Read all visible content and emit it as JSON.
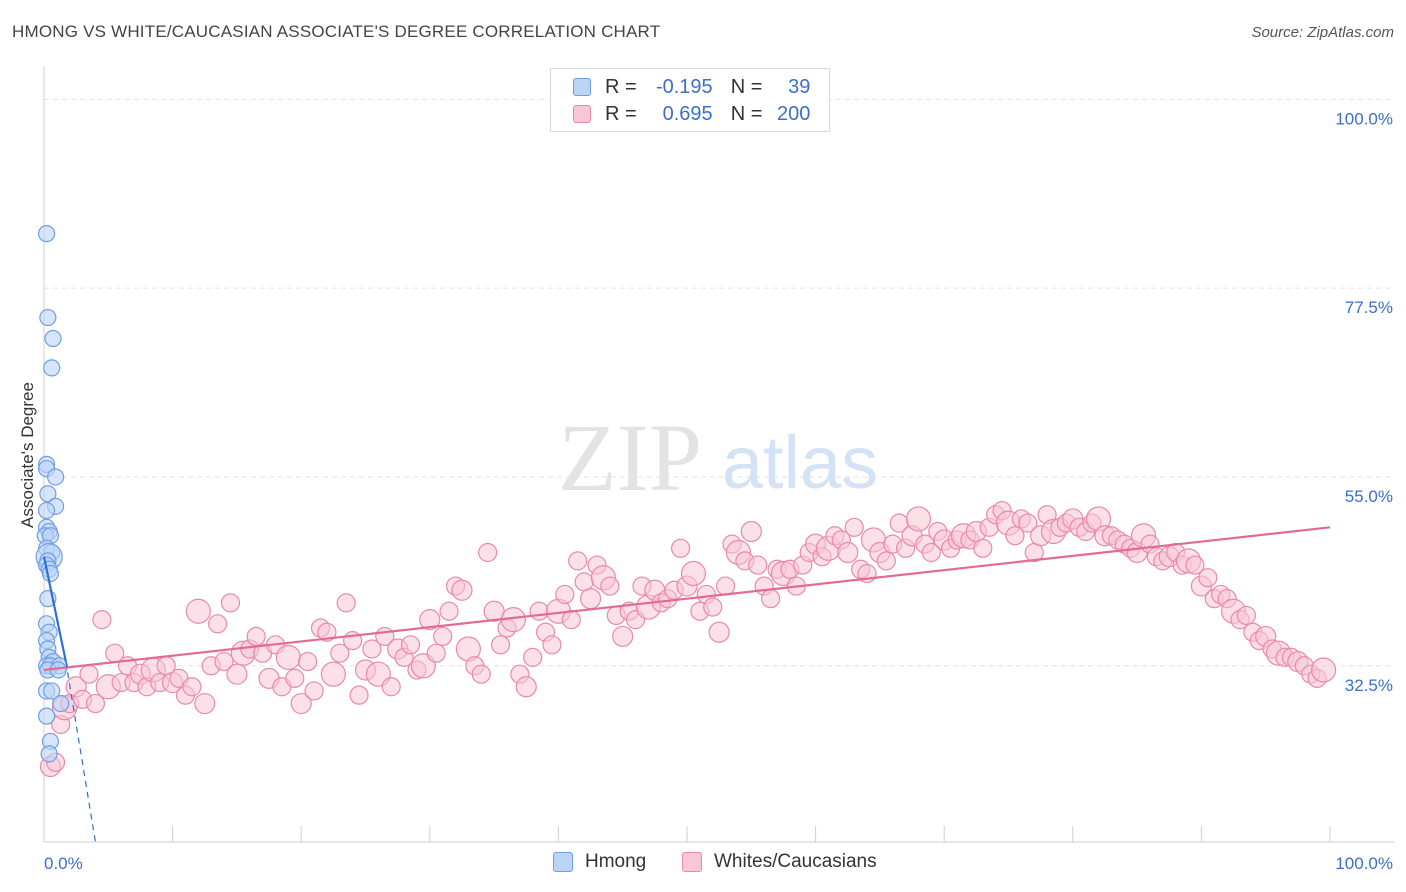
{
  "header": {
    "title": "HMONG VS WHITE/CAUCASIAN ASSOCIATE'S DEGREE CORRELATION CHART",
    "source": "Source: ZipAtlas.com"
  },
  "watermark": {
    "zip": "ZIP",
    "atlas": "atlas"
  },
  "legend": {
    "rows": [
      {
        "r_label": "R =",
        "r_value": "-0.195",
        "n_label": "N =",
        "n_value": "39",
        "color": "#6f9ee6",
        "fill": "#bcd4f6"
      },
      {
        "r_label": "R =",
        "r_value": "0.695",
        "n_label": "N =",
        "n_value": "200",
        "color": "#e98aa8",
        "fill": "#f8c6d6"
      }
    ]
  },
  "bottom_legend": [
    {
      "label": "Hmong",
      "color": "#6f9ee6",
      "fill": "#bcd4f6"
    },
    {
      "label": "Whites/Caucasians",
      "color": "#e98aa8",
      "fill": "#f8c6d6"
    }
  ],
  "chart_data": {
    "type": "scatter",
    "title": "HMONG VS WHITE/CAUCASIAN ASSOCIATE'S DEGREE CORRELATION CHART",
    "ylabel": "Associate's Degree",
    "xlabel": "",
    "x_tick_labels": [
      "0.0%",
      "100.0%"
    ],
    "y_tick_labels": [
      "32.5%",
      "55.0%",
      "77.5%",
      "100.0%"
    ],
    "y_ticks": [
      32.5,
      55.0,
      77.5,
      100.0
    ],
    "xlim": [
      0,
      100
    ],
    "ylim": [
      11.5,
      103.5
    ],
    "grid": true,
    "legend_position": "top-center",
    "colors": {
      "hmong": "#6f9ee6",
      "white": "#e98aa8",
      "axis_labels": "#3b6fc9"
    },
    "series": [
      {
        "name": "Hmong",
        "r": -0.195,
        "n": 39,
        "trend": {
          "x0": 0,
          "y0": 45.5,
          "x1": 1.7,
          "y1": 33.0,
          "dashed_to_x": 4.0,
          "dashed_to_y": 11.5
        },
        "points": [
          [
            0.2,
            84.0
          ],
          [
            0.3,
            74.0
          ],
          [
            0.7,
            71.5
          ],
          [
            0.6,
            68.0
          ],
          [
            0.2,
            56.5
          ],
          [
            0.2,
            56.0
          ],
          [
            0.9,
            55.0
          ],
          [
            0.3,
            53.0
          ],
          [
            0.9,
            51.5
          ],
          [
            0.2,
            51.0
          ],
          [
            0.2,
            49.0
          ],
          [
            0.4,
            48.5
          ],
          [
            0.1,
            48.0
          ],
          [
            0.5,
            48.0
          ],
          [
            0.2,
            46.5
          ],
          [
            0.6,
            46.0
          ],
          [
            0.4,
            45.5
          ],
          [
            0.3,
            45.0
          ],
          [
            0.2,
            44.5
          ],
          [
            0.4,
            44.0
          ],
          [
            0.5,
            43.5
          ],
          [
            0.3,
            40.5
          ],
          [
            0.2,
            37.5
          ],
          [
            0.4,
            36.5
          ],
          [
            0.2,
            35.5
          ],
          [
            0.3,
            34.5
          ],
          [
            0.4,
            33.5
          ],
          [
            0.7,
            33.0
          ],
          [
            0.2,
            32.5
          ],
          [
            0.5,
            32.5
          ],
          [
            1.2,
            32.5
          ],
          [
            0.3,
            32.0
          ],
          [
            1.1,
            32.0
          ],
          [
            0.2,
            29.5
          ],
          [
            0.6,
            29.5
          ],
          [
            1.3,
            28.0
          ],
          [
            0.2,
            26.5
          ],
          [
            0.5,
            23.5
          ],
          [
            0.4,
            22.0
          ]
        ]
      },
      {
        "name": "Whites/Caucasians",
        "r": 0.695,
        "n": 200,
        "trend": {
          "x0": 0,
          "y0": 32.0,
          "x1": 100,
          "y1": 49.0
        },
        "points": [
          [
            0.5,
            20.5
          ],
          [
            0.9,
            21.0
          ],
          [
            1.3,
            25.5
          ],
          [
            1.6,
            27.5
          ],
          [
            2.0,
            28.0
          ],
          [
            2.5,
            30.0
          ],
          [
            3.0,
            28.5
          ],
          [
            3.5,
            31.5
          ],
          [
            4.0,
            28.0
          ],
          [
            4.5,
            38.0
          ],
          [
            5.0,
            30.0
          ],
          [
            5.5,
            34.0
          ],
          [
            6.0,
            30.5
          ],
          [
            6.5,
            32.5
          ],
          [
            7.0,
            30.5
          ],
          [
            7.5,
            31.5
          ],
          [
            8.0,
            30.0
          ],
          [
            8.5,
            32.0
          ],
          [
            9.0,
            30.5
          ],
          [
            9.5,
            32.5
          ],
          [
            10.0,
            30.5
          ],
          [
            10.5,
            31.0
          ],
          [
            11.0,
            29.0
          ],
          [
            11.5,
            30.0
          ],
          [
            12.0,
            39.0
          ],
          [
            12.5,
            28.0
          ],
          [
            13.0,
            32.5
          ],
          [
            13.5,
            37.5
          ],
          [
            14.0,
            33.0
          ],
          [
            14.5,
            40.0
          ],
          [
            15.0,
            31.5
          ],
          [
            15.5,
            34.0
          ],
          [
            16.0,
            34.5
          ],
          [
            16.5,
            36.0
          ],
          [
            17.0,
            34.0
          ],
          [
            17.5,
            31.0
          ],
          [
            18.0,
            35.0
          ],
          [
            18.5,
            30.0
          ],
          [
            19.0,
            33.5
          ],
          [
            19.5,
            31.0
          ],
          [
            20.0,
            28.0
          ],
          [
            20.5,
            33.0
          ],
          [
            21.0,
            29.5
          ],
          [
            21.5,
            37.0
          ],
          [
            22.0,
            36.5
          ],
          [
            22.5,
            31.5
          ],
          [
            23.0,
            34.0
          ],
          [
            23.5,
            40.0
          ],
          [
            24.0,
            35.5
          ],
          [
            24.5,
            29.0
          ],
          [
            25.0,
            32.0
          ],
          [
            25.5,
            34.5
          ],
          [
            26.0,
            31.5
          ],
          [
            26.5,
            36.0
          ],
          [
            27.0,
            30.0
          ],
          [
            27.5,
            34.5
          ],
          [
            28.0,
            33.5
          ],
          [
            28.5,
            35.0
          ],
          [
            29.0,
            32.0
          ],
          [
            29.5,
            32.5
          ],
          [
            30.0,
            38.0
          ],
          [
            30.5,
            34.0
          ],
          [
            31.0,
            36.0
          ],
          [
            31.5,
            39.0
          ],
          [
            32.0,
            42.0
          ],
          [
            32.5,
            41.5
          ],
          [
            33.0,
            34.5
          ],
          [
            33.5,
            32.5
          ],
          [
            34.0,
            31.5
          ],
          [
            34.5,
            46.0
          ],
          [
            35.0,
            39.0
          ],
          [
            35.5,
            35.0
          ],
          [
            36.0,
            37.0
          ],
          [
            36.5,
            38.0
          ],
          [
            37.0,
            31.5
          ],
          [
            37.5,
            30.0
          ],
          [
            38.0,
            33.5
          ],
          [
            38.5,
            39.0
          ],
          [
            39.0,
            36.5
          ],
          [
            39.5,
            35.0
          ],
          [
            40.0,
            39.0
          ],
          [
            40.5,
            41.0
          ],
          [
            41.0,
            38.0
          ],
          [
            41.5,
            45.0
          ],
          [
            42.0,
            42.5
          ],
          [
            42.5,
            40.5
          ],
          [
            43.0,
            44.5
          ],
          [
            43.5,
            43.0
          ],
          [
            44.0,
            42.0
          ],
          [
            44.5,
            38.5
          ],
          [
            45.0,
            36.0
          ],
          [
            45.5,
            39.0
          ],
          [
            46.0,
            38.0
          ],
          [
            46.5,
            42.0
          ],
          [
            47.0,
            39.5
          ],
          [
            47.5,
            41.5
          ],
          [
            48.0,
            40.0
          ],
          [
            48.5,
            40.5
          ],
          [
            49.0,
            41.5
          ],
          [
            49.5,
            46.5
          ],
          [
            50.0,
            42.0
          ],
          [
            50.5,
            43.5
          ],
          [
            51.0,
            39.0
          ],
          [
            51.5,
            41.0
          ],
          [
            52.0,
            39.5
          ],
          [
            52.5,
            36.5
          ],
          [
            53.0,
            42.0
          ],
          [
            53.5,
            47.0
          ],
          [
            54.0,
            46.0
          ],
          [
            54.5,
            45.0
          ],
          [
            55.0,
            48.5
          ],
          [
            55.5,
            44.5
          ],
          [
            56.0,
            42.0
          ],
          [
            56.5,
            40.5
          ],
          [
            57.0,
            44.0
          ],
          [
            57.5,
            43.5
          ],
          [
            58.0,
            44.0
          ],
          [
            58.5,
            42.0
          ],
          [
            59.0,
            44.5
          ],
          [
            59.5,
            46.0
          ],
          [
            60.0,
            47.0
          ],
          [
            60.5,
            45.5
          ],
          [
            61.0,
            46.5
          ],
          [
            61.5,
            48.0
          ],
          [
            62.0,
            47.5
          ],
          [
            62.5,
            46.0
          ],
          [
            63.0,
            49.0
          ],
          [
            63.5,
            44.0
          ],
          [
            64.0,
            43.5
          ],
          [
            64.5,
            47.5
          ],
          [
            65.0,
            46.0
          ],
          [
            65.5,
            45.0
          ],
          [
            66.0,
            47.0
          ],
          [
            66.5,
            49.5
          ],
          [
            67.0,
            46.5
          ],
          [
            67.5,
            48.0
          ],
          [
            68.0,
            50.0
          ],
          [
            68.5,
            47.0
          ],
          [
            69.0,
            46.0
          ],
          [
            69.5,
            48.5
          ],
          [
            70.0,
            47.5
          ],
          [
            70.5,
            46.5
          ],
          [
            71.0,
            47.5
          ],
          [
            71.5,
            48.0
          ],
          [
            72.0,
            47.5
          ],
          [
            72.5,
            48.5
          ],
          [
            73.0,
            46.5
          ],
          [
            73.5,
            49.0
          ],
          [
            74.0,
            50.5
          ],
          [
            74.5,
            51.0
          ],
          [
            75.0,
            49.5
          ],
          [
            75.5,
            48.0
          ],
          [
            76.0,
            50.0
          ],
          [
            76.5,
            49.5
          ],
          [
            77.0,
            46.0
          ],
          [
            77.5,
            48.0
          ],
          [
            78.0,
            50.5
          ],
          [
            78.5,
            48.5
          ],
          [
            79.0,
            49.0
          ],
          [
            79.5,
            49.5
          ],
          [
            80.0,
            50.0
          ],
          [
            80.5,
            49.0
          ],
          [
            81.0,
            48.5
          ],
          [
            81.5,
            49.5
          ],
          [
            82.0,
            50.0
          ],
          [
            82.5,
            48.0
          ],
          [
            83.0,
            48.0
          ],
          [
            83.5,
            47.5
          ],
          [
            84.0,
            47.0
          ],
          [
            84.5,
            46.5
          ],
          [
            85.0,
            46.0
          ],
          [
            85.5,
            48.0
          ],
          [
            86.0,
            47.0
          ],
          [
            86.5,
            45.5
          ],
          [
            87.0,
            45.0
          ],
          [
            87.5,
            45.5
          ],
          [
            88.0,
            46.0
          ],
          [
            88.5,
            44.5
          ],
          [
            89.0,
            45.0
          ],
          [
            89.5,
            44.5
          ],
          [
            90.0,
            42.0
          ],
          [
            90.5,
            43.0
          ],
          [
            91.0,
            40.5
          ],
          [
            91.5,
            41.0
          ],
          [
            92.0,
            40.5
          ],
          [
            92.5,
            39.0
          ],
          [
            93.0,
            38.0
          ],
          [
            93.5,
            38.5
          ],
          [
            94.0,
            36.5
          ],
          [
            94.5,
            35.5
          ],
          [
            95.0,
            36.0
          ],
          [
            95.5,
            34.5
          ],
          [
            96.0,
            34.0
          ],
          [
            96.5,
            33.5
          ],
          [
            97.0,
            33.5
          ],
          [
            97.5,
            33.0
          ],
          [
            98.0,
            32.5
          ],
          [
            98.5,
            31.5
          ],
          [
            99.0,
            31.0
          ],
          [
            99.5,
            32.0
          ]
        ]
      }
    ]
  }
}
